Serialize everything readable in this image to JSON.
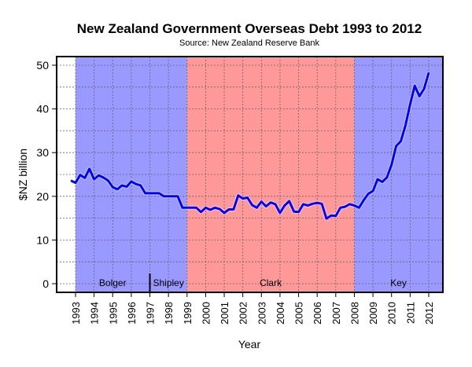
{
  "chart_data": {
    "type": "line",
    "title": "New Zealand Government Overseas Debt 1993 to 2012",
    "subtitle": "Source: New Zealand Reserve Bank",
    "xlabel": "Year",
    "ylabel": "$NZ billion",
    "xlim": [
      1992,
      2012.75
    ],
    "ylim": [
      -2,
      52
    ],
    "grid": true,
    "y_ticks": [
      0,
      10,
      20,
      30,
      40,
      50
    ],
    "y_grid_step": 5,
    "x_ticks": [
      1993,
      1994,
      1995,
      1996,
      1997,
      1998,
      1999,
      2000,
      2001,
      2002,
      2003,
      2004,
      2005,
      2006,
      2007,
      2008,
      2009,
      2010,
      2011,
      2012
    ],
    "x_tick_labels": [
      "1993",
      "1994",
      "1995",
      "1996",
      "1997",
      "1998",
      "1999",
      "2000",
      "2001",
      "2002",
      "2003",
      "2004",
      "2005",
      "2006",
      "2007",
      "2008",
      "2009",
      "2010",
      "2011",
      "2012"
    ],
    "regions": [
      {
        "label": "Bolger",
        "from": 1993,
        "to": 1997,
        "color": "#9999ff"
      },
      {
        "label": "Shipley",
        "from": 1997,
        "to": 1999,
        "color": "#9999ff"
      },
      {
        "label": "Clark",
        "from": 1999,
        "to": 2008,
        "color": "#ff9999"
      },
      {
        "label": "Key",
        "from": 2008,
        "to": 2012.75,
        "color": "#9999ff"
      }
    ],
    "series": [
      {
        "name": "Overseas debt",
        "color": "#0000ff",
        "x": [
          1992.75,
          1993,
          1993.25,
          1993.5,
          1993.75,
          1994,
          1994.25,
          1994.5,
          1994.75,
          1995,
          1995.25,
          1995.5,
          1995.75,
          1996,
          1996.25,
          1996.5,
          1996.75,
          1997,
          1997.25,
          1997.5,
          1997.75,
          1998,
          1998.25,
          1998.5,
          1998.75,
          1999,
          1999.25,
          1999.5,
          1999.75,
          2000,
          2000.25,
          2000.5,
          2000.75,
          2001,
          2001.25,
          2001.5,
          2001.75,
          2002,
          2002.25,
          2002.5,
          2002.75,
          2003,
          2003.25,
          2003.5,
          2003.75,
          2004,
          2004.25,
          2004.5,
          2004.75,
          2005,
          2005.25,
          2005.5,
          2005.75,
          2006,
          2006.25,
          2006.5,
          2006.75,
          2007,
          2007.25,
          2007.5,
          2007.75,
          2008,
          2008.25,
          2008.5,
          2008.75,
          2009,
          2009.25,
          2009.5,
          2009.75,
          2010,
          2010.25,
          2010.5,
          2010.75,
          2011,
          2011.25,
          2011.5,
          2011.75,
          2012
        ],
        "values": [
          23.6,
          23.1,
          24.9,
          24.2,
          26.3,
          23.9,
          24.8,
          24.3,
          23.6,
          22.1,
          21.6,
          22.5,
          22.2,
          23.4,
          22.8,
          22.5,
          20.7,
          20.7,
          20.7,
          20.7,
          20.0,
          20.0,
          20.0,
          20.0,
          17.4,
          17.4,
          17.4,
          17.4,
          16.4,
          17.4,
          16.9,
          17.4,
          17.1,
          16.2,
          17.0,
          17.0,
          20.2,
          19.5,
          19.7,
          18.0,
          17.4,
          18.8,
          17.7,
          18.6,
          18.2,
          16.2,
          17.9,
          18.9,
          16.5,
          16.4,
          18.2,
          17.9,
          18.3,
          18.5,
          18.3,
          14.9,
          15.6,
          15.5,
          17.4,
          17.6,
          18.2,
          17.9,
          17.4,
          19.1,
          20.6,
          21.2,
          23.9,
          23.3,
          24.3,
          27.2,
          31.5,
          32.6,
          36.2,
          41.0,
          45.3,
          42.9,
          44.6,
          48.3
        ]
      }
    ]
  }
}
